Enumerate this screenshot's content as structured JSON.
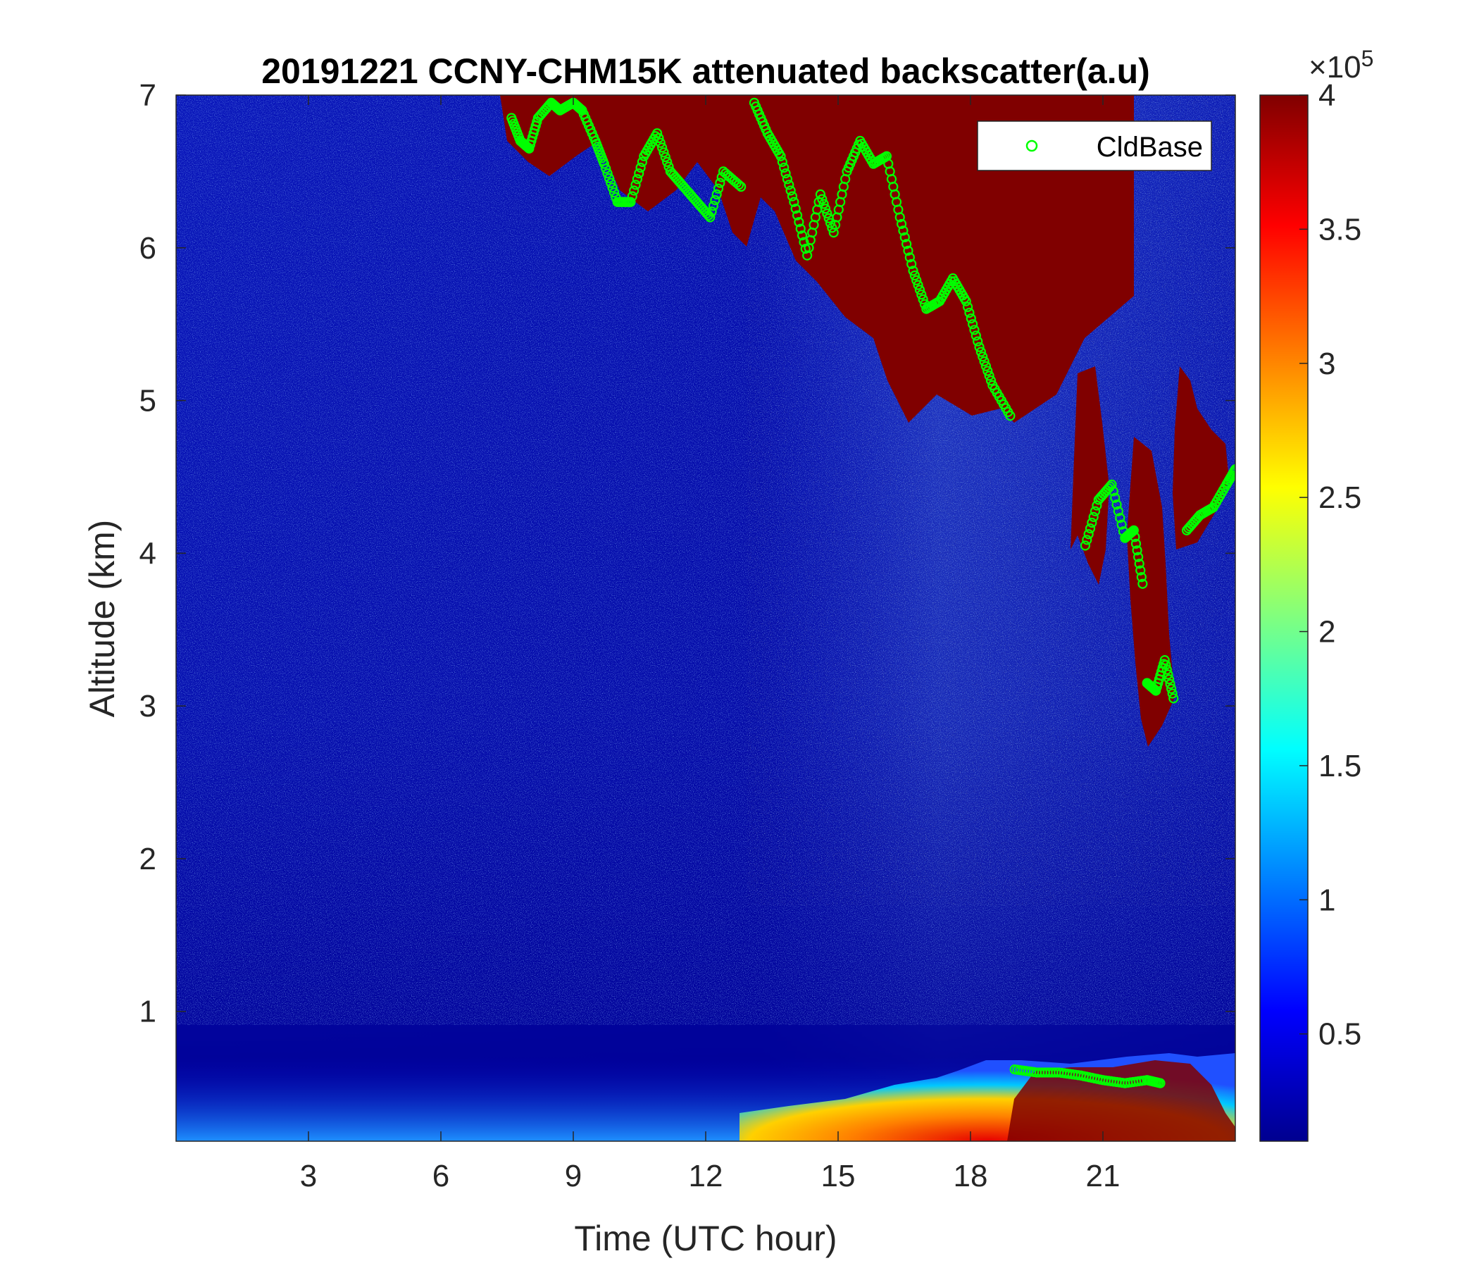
{
  "chart_data": {
    "type": "heatmap",
    "title": "20191221 CCNY-CHM15K attenuated backscatter(a.u)",
    "xlabel": "Time (UTC hour)",
    "ylabel": "Altitude (km)",
    "xlim": [
      0,
      24
    ],
    "ylim": [
      0.15,
      7
    ],
    "x_ticks": [
      "3",
      "6",
      "9",
      "12",
      "15",
      "18",
      "21"
    ],
    "y_ticks": [
      "1",
      "2",
      "3",
      "4",
      "5",
      "6",
      "7"
    ],
    "colorbar": {
      "range": [
        0.1,
        4
      ],
      "ticks": [
        "0.5",
        "1",
        "1.5",
        "2",
        "2.5",
        "3",
        "3.5",
        "4"
      ],
      "exponent_label": "×10",
      "exponent_power": "5",
      "colormap": "jet",
      "colors": [
        "#00008f",
        "#0000ff",
        "#00ffff",
        "#ffff00",
        "#ff0000",
        "#800000"
      ]
    },
    "legend": {
      "position": "top-right",
      "entries": [
        "CldBase"
      ]
    },
    "series": [
      {
        "name": "CldBase",
        "marker": "circle",
        "color": "#00ff00",
        "x": [
          7.6,
          7.8,
          8.0,
          8.2,
          8.5,
          8.7,
          9.0,
          9.2,
          9.5,
          9.7,
          10.0,
          10.3,
          10.6,
          10.9,
          11.2,
          11.5,
          11.8,
          12.1,
          12.4,
          12.8,
          13.1,
          13.4,
          13.7,
          14.0,
          14.3,
          14.6,
          14.9,
          15.2,
          15.5,
          15.8,
          16.1,
          16.4,
          16.7,
          17.0,
          17.3,
          17.6,
          17.9,
          18.2,
          18.5,
          18.9,
          19.0,
          19.5,
          20.0,
          20.5,
          21.0,
          21.5,
          22.0,
          22.3,
          20.6,
          20.9,
          21.2,
          21.5,
          21.7,
          21.9,
          22.0,
          22.2,
          22.4,
          22.6,
          22.9,
          23.2,
          23.5,
          23.8,
          24.0
        ],
        "y": [
          6.85,
          6.7,
          6.65,
          6.85,
          6.95,
          6.9,
          6.95,
          6.9,
          6.7,
          6.55,
          6.3,
          6.3,
          6.6,
          6.75,
          6.5,
          6.4,
          6.3,
          6.2,
          6.5,
          6.4,
          6.95,
          6.75,
          6.6,
          6.3,
          5.95,
          6.35,
          6.1,
          6.5,
          6.7,
          6.55,
          6.6,
          6.2,
          5.85,
          5.6,
          5.65,
          5.8,
          5.65,
          5.35,
          5.1,
          4.9,
          0.62,
          0.6,
          0.6,
          0.58,
          0.55,
          0.53,
          0.55,
          0.53,
          4.05,
          4.35,
          4.45,
          4.1,
          4.15,
          3.8,
          3.15,
          3.1,
          3.3,
          3.05,
          4.15,
          4.25,
          4.3,
          4.45,
          4.55
        ]
      }
    ]
  }
}
